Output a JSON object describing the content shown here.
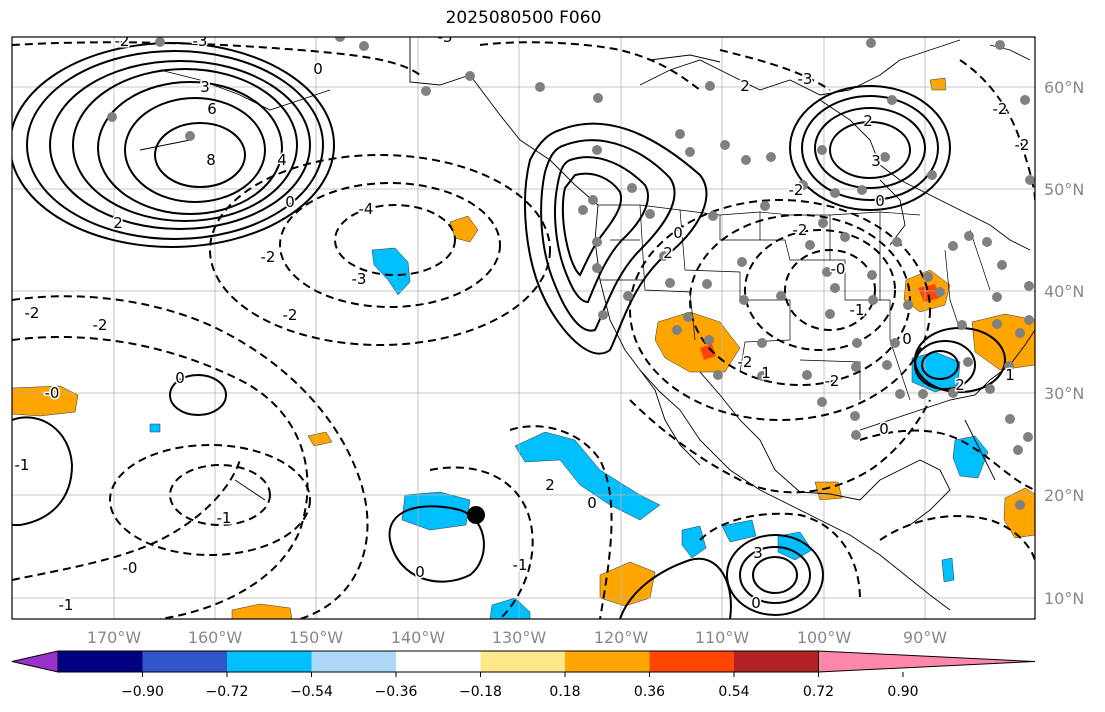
{
  "title": "2025080500 F060",
  "lon_labels": [
    "170°W",
    "160°W",
    "150°W",
    "140°W",
    "130°W",
    "120°W",
    "110°W",
    "100°W",
    "90°W"
  ],
  "lat_labels": [
    "60°N",
    "50°N",
    "40°N",
    "30°N",
    "20°N",
    "10°N"
  ],
  "colorbar": {
    "ticks": [
      "−0.90",
      "−0.72",
      "−0.54",
      "−0.36",
      "−0.18",
      "0.18",
      "0.36",
      "0.54",
      "0.72",
      "0.90"
    ],
    "colors": [
      "#9932cc",
      "#000080",
      "#3355cc",
      "#00bfff",
      "#add8f8",
      "#ffffff",
      "#ffe88a",
      "#ffa500",
      "#ff4500",
      "#b22222",
      "#ff88aa"
    ]
  },
  "contour_labels": [
    {
      "text": "-2"
    },
    {
      "text": "-3"
    },
    {
      "text": "-3"
    },
    {
      "text": "0"
    },
    {
      "text": "3"
    },
    {
      "text": "6"
    },
    {
      "text": "8"
    },
    {
      "text": "4"
    },
    {
      "text": "0"
    },
    {
      "text": "2"
    },
    {
      "text": "-2"
    },
    {
      "text": "-4"
    },
    {
      "text": "-3"
    },
    {
      "text": "-2"
    },
    {
      "text": "-2"
    },
    {
      "text": "-2"
    },
    {
      "text": "0"
    },
    {
      "text": "-0"
    },
    {
      "text": "-1"
    },
    {
      "text": "-1"
    },
    {
      "text": "-0"
    },
    {
      "text": "-1"
    },
    {
      "text": "0"
    },
    {
      "text": "0"
    },
    {
      "text": "-1"
    },
    {
      "text": "2"
    },
    {
      "text": "1"
    },
    {
      "text": "0"
    },
    {
      "text": "3"
    },
    {
      "text": "2"
    },
    {
      "text": "-3"
    },
    {
      "text": "-2"
    },
    {
      "text": "-2"
    },
    {
      "text": "-2"
    },
    {
      "text": "-0"
    },
    {
      "text": "-1"
    },
    {
      "text": "0"
    },
    {
      "text": "2"
    },
    {
      "text": "-2"
    },
    {
      "text": "0"
    },
    {
      "text": "2"
    },
    {
      "text": "3"
    },
    {
      "text": "-2"
    },
    {
      "text": "-2"
    },
    {
      "text": "0"
    },
    {
      "text": "2"
    },
    {
      "text": "1"
    },
    {
      "text": "0"
    }
  ]
}
